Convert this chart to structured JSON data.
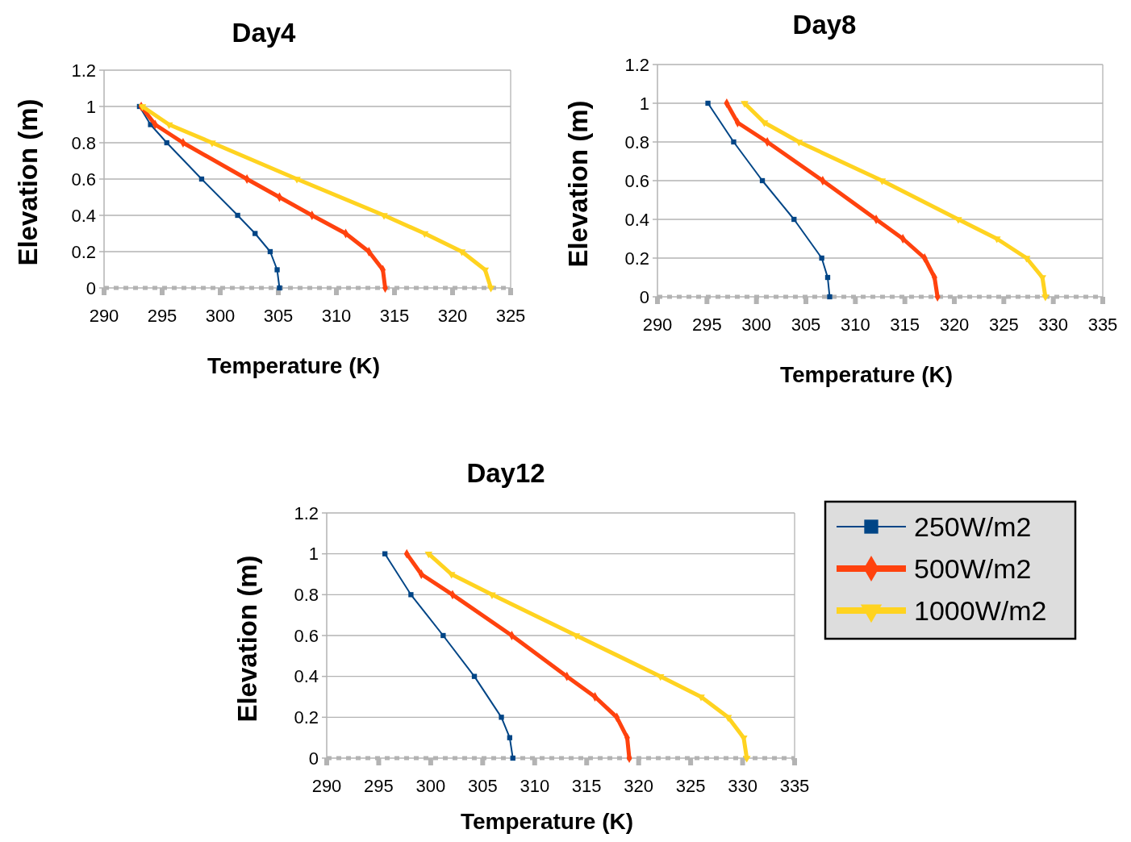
{
  "chart_data": [
    {
      "type": "line",
      "title": "Day4",
      "xlabel": "Temperature (K)",
      "ylabel": "Elevation (m)",
      "xlim": [
        290,
        325
      ],
      "xticks": [
        290,
        295,
        300,
        305,
        310,
        315,
        320,
        325
      ],
      "ylim": [
        0,
        1.2
      ],
      "yticks": [
        0,
        0.2,
        0.4,
        0.6,
        0.8,
        1,
        1.2
      ],
      "grid": "y",
      "legend": false,
      "series": [
        {
          "color": "#004586",
          "marker": "square",
          "x": [
            305.1,
            304.9,
            304.3,
            303.0,
            301.5,
            298.4,
            295.4,
            294.0,
            293.05
          ],
          "values": [
            0,
            0.1,
            0.2,
            0.3,
            0.4,
            0.6,
            0.8,
            0.9,
            1
          ]
        },
        {
          "color": "#ff420e",
          "marker": "diamond",
          "x": [
            314.2,
            314.0,
            312.8,
            310.8,
            307.9,
            305.1,
            302.3,
            296.8,
            294.4,
            293.2
          ],
          "values": [
            0,
            0.1,
            0.2,
            0.3,
            0.4,
            0.5,
            0.6,
            0.8,
            0.9,
            1
          ]
        },
        {
          "color": "#ffd320",
          "marker": "triangle",
          "x": [
            323.3,
            322.8,
            320.8,
            317.6,
            314.1,
            306.6,
            299.3,
            295.6,
            293.3
          ],
          "values": [
            0,
            0.1,
            0.2,
            0.3,
            0.4,
            0.6,
            0.8,
            0.9,
            1
          ]
        }
      ]
    },
    {
      "type": "line",
      "title": "Day8",
      "xlabel": "Temperature (K)",
      "ylabel": "Elevation (m)",
      "xlim": [
        290,
        335
      ],
      "xticks": [
        290,
        295,
        300,
        305,
        310,
        315,
        320,
        325,
        330,
        335
      ],
      "ylim": [
        0,
        1.2
      ],
      "yticks": [
        0,
        0.2,
        0.4,
        0.6,
        0.8,
        1,
        1.2
      ],
      "grid": "y",
      "legend": false,
      "series": [
        {
          "color": "#004586",
          "marker": "square",
          "x": [
            307.4,
            307.2,
            306.6,
            303.8,
            300.6,
            297.7,
            295.1
          ],
          "values": [
            0,
            0.1,
            0.2,
            0.4,
            0.6,
            0.8,
            1
          ]
        },
        {
          "color": "#ff420e",
          "marker": "diamond",
          "x": [
            318.3,
            318.0,
            317.0,
            314.8,
            312.1,
            306.7,
            301.1,
            298.1,
            297.0
          ],
          "values": [
            0,
            0.1,
            0.2,
            0.3,
            0.4,
            0.6,
            0.8,
            0.9,
            1
          ]
        },
        {
          "color": "#ffd320",
          "marker": "triangle",
          "x": [
            329.2,
            328.9,
            327.3,
            324.3,
            320.4,
            312.7,
            304.3,
            300.8,
            298.8
          ],
          "values": [
            0,
            0.1,
            0.2,
            0.3,
            0.4,
            0.6,
            0.8,
            0.9,
            1
          ]
        }
      ]
    },
    {
      "type": "line",
      "title": "Day12",
      "xlabel": "Temperature (K)",
      "ylabel": "Elevation (m)",
      "xlim": [
        290,
        335
      ],
      "xticks": [
        290,
        295,
        300,
        305,
        310,
        315,
        320,
        325,
        330,
        335
      ],
      "ylim": [
        0,
        1.2
      ],
      "yticks": [
        0,
        0.2,
        0.4,
        0.6,
        0.8,
        1,
        1.2
      ],
      "grid": "y",
      "legend": "right",
      "series": [
        {
          "name": "250W/m2",
          "color": "#004586",
          "marker": "square",
          "x": [
            307.9,
            307.6,
            306.8,
            304.2,
            301.2,
            298.1,
            295.6
          ],
          "values": [
            0,
            0.1,
            0.2,
            0.4,
            0.6,
            0.8,
            1
          ]
        },
        {
          "name": "500W/m2",
          "color": "#ff420e",
          "marker": "diamond",
          "x": [
            319.1,
            318.9,
            317.9,
            315.8,
            313.1,
            307.8,
            302.1,
            299.1,
            297.7
          ],
          "values": [
            0,
            0.1,
            0.2,
            0.3,
            0.4,
            0.6,
            0.8,
            0.9,
            1
          ]
        },
        {
          "name": "1000W/m2",
          "color": "#ffd320",
          "marker": "triangle",
          "x": [
            330.4,
            330.1,
            328.6,
            326.0,
            322.1,
            314.0,
            305.9,
            302.0,
            299.8
          ],
          "values": [
            0,
            0.1,
            0.2,
            0.3,
            0.4,
            0.6,
            0.8,
            0.9,
            1
          ]
        }
      ]
    }
  ]
}
